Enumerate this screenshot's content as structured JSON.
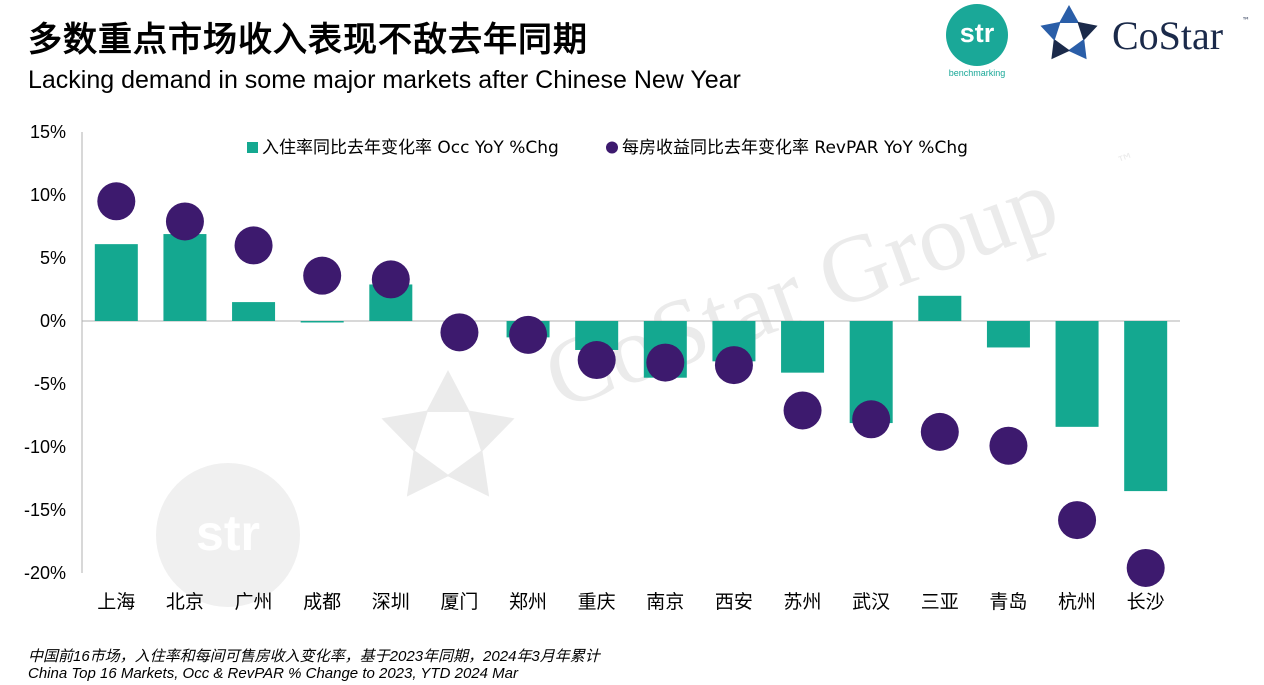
{
  "title": "多数重点市场收入表现不敌去年同期",
  "subtitle": "Lacking demand in some major markets after Chinese New Year",
  "logos": {
    "str_text": "str",
    "str_sub": "benchmarking",
    "costar_text": "CoStar",
    "costar_tm": "™"
  },
  "watermark": {
    "text": "CoStar Group",
    "tm": "™",
    "str_text": "str"
  },
  "footnote": {
    "line1": "中国前16市场，入住率和每间可售房收入变化率，基于2023年同期，2024年3月年累计",
    "line2": "China Top 16 Markets, Occ & RevPAR % Change to 2023,  YTD 2024 Mar"
  },
  "colors": {
    "occ": "#14a890",
    "revpar": "#3d1a6e",
    "axis": "#b0b0b0"
  },
  "chart_data": {
    "type": "bar",
    "categories": [
      "上海",
      "北京",
      "广州",
      "成都",
      "深圳",
      "厦门",
      "郑州",
      "重庆",
      "南京",
      "西安",
      "苏州",
      "武汉",
      "三亚",
      "青岛",
      "杭州",
      "长沙"
    ],
    "series": [
      {
        "name": "入住率同比去年变化率 Occ YoY %Chg",
        "type": "bar",
        "values": [
          6.1,
          6.9,
          1.5,
          -0.1,
          2.9,
          0.0,
          -1.3,
          -2.3,
          -4.5,
          -3.2,
          -4.1,
          -8.1,
          2.0,
          -2.1,
          -8.4,
          -13.5
        ]
      },
      {
        "name": "每房收益同比去年变化率 RevPAR YoY %Chg",
        "type": "scatter",
        "values": [
          9.5,
          7.9,
          6.0,
          3.6,
          3.3,
          -0.9,
          -1.1,
          -3.1,
          -3.3,
          -3.5,
          -7.1,
          -7.8,
          -8.8,
          -9.9,
          -15.8,
          -19.6
        ]
      }
    ],
    "yticks": [
      "15%",
      "10%",
      "5%",
      "0%",
      "-5%",
      "-10%",
      "-15%",
      "-20%"
    ],
    "ylim": [
      -20,
      15
    ],
    "legend_position": "top"
  }
}
